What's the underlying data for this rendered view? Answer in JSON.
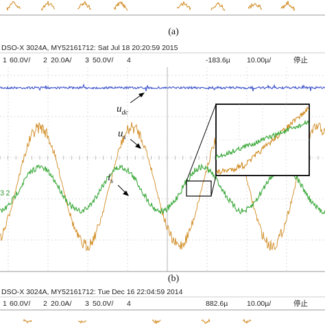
{
  "captions": {
    "a": "(a)",
    "b": "(b)"
  },
  "panel_b": {
    "header": "DSO-X 3024A, MY52161712: Sat Jul 18 20:20:59 2015",
    "channels": [
      {
        "num": "1",
        "scale": "60.0V/",
        "color": "#d08a20"
      },
      {
        "num": "2",
        "scale": "20.0A/",
        "color": "#3a9a3a"
      },
      {
        "num": "3",
        "scale": "50.0V/",
        "color": "#5566aa"
      },
      {
        "num": "4",
        "scale": "",
        "color": "#cc33aa"
      }
    ],
    "time_pos": "-183.6µ",
    "time_div": "10.00µ/",
    "status": "停止",
    "trace_labels": {
      "udc_main": "u",
      "udc_sub": "dc",
      "us_main": "u",
      "us_sub": "s",
      "is_main": "i",
      "is_sub": "s"
    },
    "markers": {
      "left": "3 2"
    }
  },
  "panel_c": {
    "header": "DSO-X 3024A, MY52161712: Tue Dec 16 22:04:59 2014",
    "channels": [
      {
        "num": "1",
        "scale": "60.0V/",
        "color": "#d08a20"
      },
      {
        "num": "2",
        "scale": "20.0A/",
        "color": "#3a9a3a"
      },
      {
        "num": "3",
        "scale": "50.0V/",
        "color": "#5566aa"
      },
      {
        "num": "4",
        "scale": "",
        "color": "#cc33aa"
      }
    ],
    "time_pos": "882.6µ",
    "time_div": "10.00µ/",
    "status": "停止"
  },
  "chart_data": {
    "type": "line",
    "series": [
      {
        "name": "u_dc",
        "color": "#3a4fc8",
        "waveform": "dc",
        "cycles": 0,
        "noise": "low"
      },
      {
        "name": "u_s",
        "color": "#d08a20",
        "waveform": "sine",
        "cycles": 3.5,
        "noise": "high"
      },
      {
        "name": "i_s",
        "color": "#3aa83a",
        "waveform": "sine",
        "cycles": 4.0,
        "noise": "medium"
      }
    ],
    "grid": true,
    "inset": true
  }
}
